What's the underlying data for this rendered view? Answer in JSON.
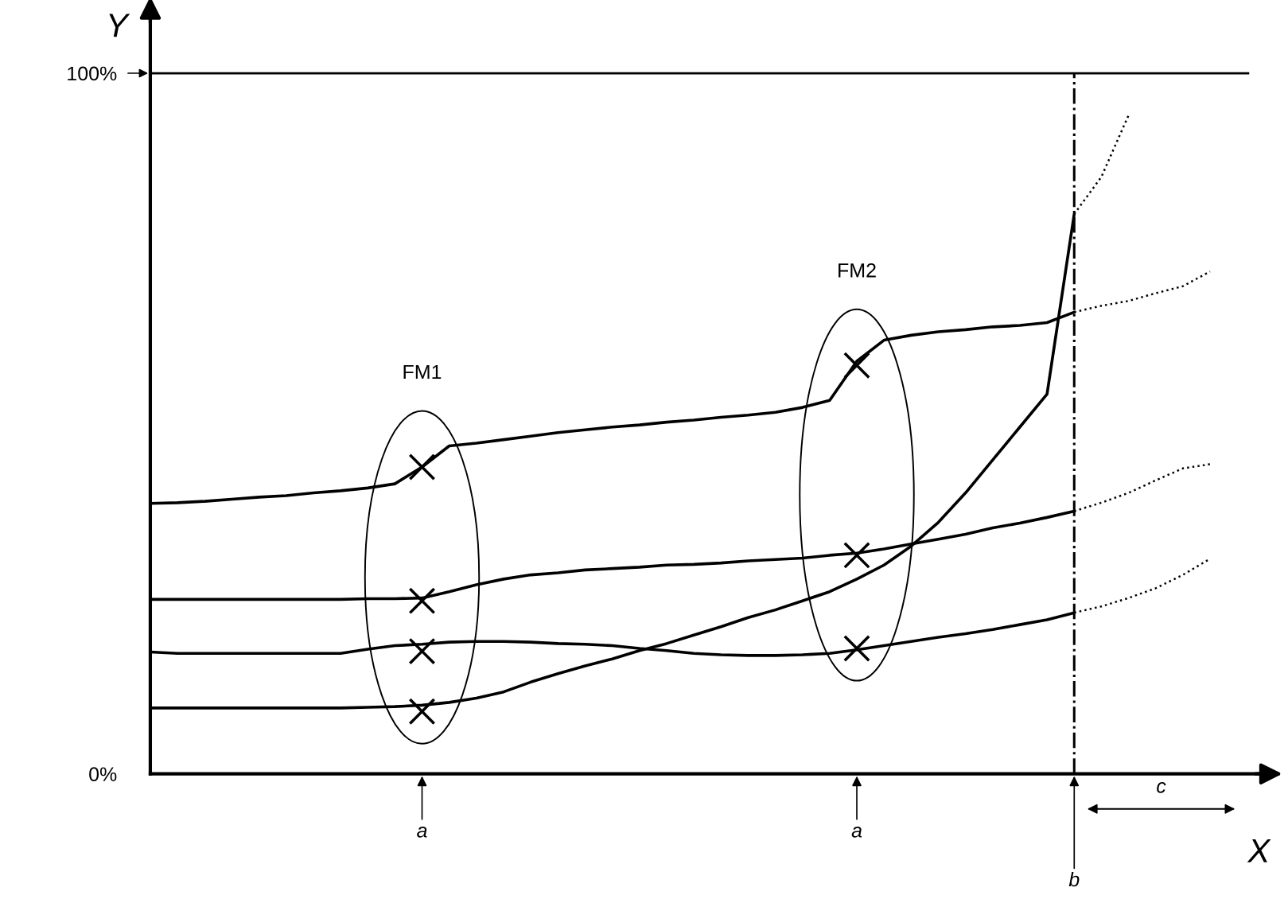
{
  "chart_data": {
    "type": "line",
    "xlabel": "X",
    "ylabel": "Y",
    "categories": [
      null,
      null,
      null,
      null,
      null,
      null,
      null,
      null,
      null,
      null,
      null,
      null,
      null,
      null,
      null,
      null,
      null,
      null,
      null,
      null,
      null,
      null,
      null,
      null,
      null,
      null,
      null,
      null,
      null,
      null,
      null,
      null,
      null,
      null,
      null,
      null,
      null,
      null,
      null,
      null
    ],
    "ylim": [
      0,
      108
    ],
    "yticks": [
      {
        "value": 0,
        "label": "0%"
      },
      {
        "value": 100,
        "label": "100%"
      }
    ],
    "series": [
      {
        "color": "#000000",
        "line_style": "solid",
        "values": [
          38.6,
          38.7,
          38.9,
          39.2,
          39.5,
          39.7,
          40.1,
          40.4,
          40.8,
          41.4,
          43.8,
          46.8,
          47.2,
          47.7,
          48.2,
          48.7,
          49.1,
          49.5,
          49.8,
          50.2,
          50.5,
          50.9,
          51.2,
          51.6,
          52.3,
          53.3,
          58.9,
          61.9,
          62.6,
          63.1,
          63.4,
          63.8,
          64.0,
          64.4,
          65.9,
          null,
          null,
          null,
          null,
          null
        ]
      },
      {
        "color": "#000000",
        "line_style": "dotted",
        "values": [
          null,
          null,
          null,
          null,
          null,
          null,
          null,
          null,
          null,
          null,
          null,
          null,
          null,
          null,
          null,
          null,
          null,
          null,
          null,
          null,
          null,
          null,
          null,
          null,
          null,
          null,
          null,
          null,
          null,
          null,
          null,
          null,
          null,
          null,
          65.9,
          66.8,
          67.5,
          68.6,
          69.6,
          71.7
        ]
      },
      {
        "color": "#000000",
        "line_style": "solid",
        "values": [
          24.9,
          24.9,
          24.9,
          24.9,
          24.9,
          24.9,
          24.9,
          24.9,
          25.0,
          25.0,
          25.1,
          26.0,
          27.0,
          27.8,
          28.4,
          28.7,
          29.1,
          29.3,
          29.5,
          29.8,
          29.9,
          30.1,
          30.4,
          30.6,
          30.8,
          31.2,
          31.5,
          32.1,
          32.8,
          33.5,
          34.2,
          35.1,
          35.8,
          36.6,
          37.5,
          null,
          null,
          null,
          null,
          null
        ]
      },
      {
        "color": "#000000",
        "line_style": "dotted",
        "values": [
          null,
          null,
          null,
          null,
          null,
          null,
          null,
          null,
          null,
          null,
          null,
          null,
          null,
          null,
          null,
          null,
          null,
          null,
          null,
          null,
          null,
          null,
          null,
          null,
          null,
          null,
          null,
          null,
          null,
          null,
          null,
          null,
          null,
          null,
          37.5,
          38.7,
          40.1,
          41.9,
          43.6,
          44.2
        ]
      },
      {
        "color": "#000000",
        "line_style": "solid",
        "values": [
          17.4,
          17.2,
          17.2,
          17.2,
          17.2,
          17.2,
          17.2,
          17.2,
          17.8,
          18.3,
          18.5,
          18.8,
          18.9,
          18.9,
          18.8,
          18.6,
          18.5,
          18.3,
          17.9,
          17.6,
          17.2,
          17.0,
          16.9,
          16.9,
          17.0,
          17.2,
          17.7,
          18.3,
          18.9,
          19.5,
          20.0,
          20.6,
          21.3,
          22.0,
          23.0,
          null,
          null,
          null,
          null,
          null
        ]
      },
      {
        "color": "#000000",
        "line_style": "dotted",
        "values": [
          null,
          null,
          null,
          null,
          null,
          null,
          null,
          null,
          null,
          null,
          null,
          null,
          null,
          null,
          null,
          null,
          null,
          null,
          null,
          null,
          null,
          null,
          null,
          null,
          null,
          null,
          null,
          null,
          null,
          null,
          null,
          null,
          null,
          null,
          23.0,
          23.9,
          25.1,
          26.5,
          28.4,
          30.7
        ]
      },
      {
        "color": "#000000",
        "line_style": "solid",
        "values": [
          9.4,
          9.4,
          9.4,
          9.4,
          9.4,
          9.4,
          9.4,
          9.4,
          9.5,
          9.6,
          9.8,
          10.2,
          10.8,
          11.7,
          13.1,
          14.3,
          15.4,
          16.4,
          17.6,
          18.6,
          19.8,
          21.0,
          22.3,
          23.4,
          24.7,
          26.0,
          27.8,
          29.8,
          32.5,
          35.9,
          40.1,
          44.8,
          49.5,
          54.2,
          79.9,
          null,
          null,
          null,
          null,
          null
        ]
      },
      {
        "color": "#000000",
        "line_style": "dotted",
        "values": [
          null,
          null,
          null,
          null,
          null,
          null,
          null,
          null,
          null,
          null,
          null,
          null,
          null,
          null,
          null,
          null,
          null,
          null,
          null,
          null,
          null,
          null,
          null,
          null,
          null,
          null,
          null,
          null,
          null,
          null,
          null,
          null,
          null,
          null,
          79.9,
          85.2,
          94.0,
          null,
          null,
          null
        ]
      },
      {
        "type": "scatter",
        "color": "#000000",
        "marker": "cross",
        "values": [
          null,
          null,
          null,
          null,
          null,
          null,
          null,
          null,
          null,
          null,
          43.8,
          null,
          null,
          null,
          null,
          null,
          null,
          null,
          null,
          null,
          null,
          null,
          null,
          null,
          null,
          null,
          null,
          null,
          null,
          null,
          null,
          null,
          null,
          null,
          null,
          null,
          null,
          null,
          null,
          null
        ]
      },
      {
        "type": "scatter",
        "color": "#000000",
        "marker": "cross",
        "values": [
          null,
          null,
          null,
          null,
          null,
          null,
          null,
          null,
          null,
          null,
          24.7,
          null,
          null,
          null,
          null,
          null,
          null,
          null,
          null,
          null,
          null,
          null,
          null,
          null,
          null,
          null,
          58.3,
          null,
          null,
          null,
          null,
          null,
          null,
          null,
          null,
          null,
          null,
          null,
          null,
          null
        ]
      },
      {
        "type": "scatter",
        "color": "#000000",
        "marker": "cross",
        "values": [
          null,
          null,
          null,
          null,
          null,
          null,
          null,
          null,
          null,
          null,
          17.5,
          null,
          null,
          null,
          null,
          null,
          null,
          null,
          null,
          null,
          null,
          null,
          null,
          null,
          null,
          null,
          31.2,
          null,
          null,
          null,
          null,
          null,
          null,
          null,
          null,
          null,
          null,
          null,
          null,
          null
        ]
      },
      {
        "type": "scatter",
        "color": "#000000",
        "marker": "cross",
        "values": [
          null,
          null,
          null,
          null,
          null,
          null,
          null,
          null,
          null,
          null,
          8.9,
          null,
          null,
          null,
          null,
          null,
          null,
          null,
          null,
          null,
          null,
          null,
          null,
          null,
          null,
          null,
          17.9,
          null,
          null,
          null,
          null,
          null,
          null,
          null,
          null,
          null,
          null,
          null,
          null,
          null
        ]
      }
    ],
    "ref_lines": [
      {
        "axis": "y",
        "value": 100,
        "label": null,
        "color": "#000000"
      }
    ],
    "annotations": [
      "FM1",
      "FM2",
      "a",
      "a",
      "b",
      "c"
    ],
    "grid": false,
    "legend": false
  }
}
